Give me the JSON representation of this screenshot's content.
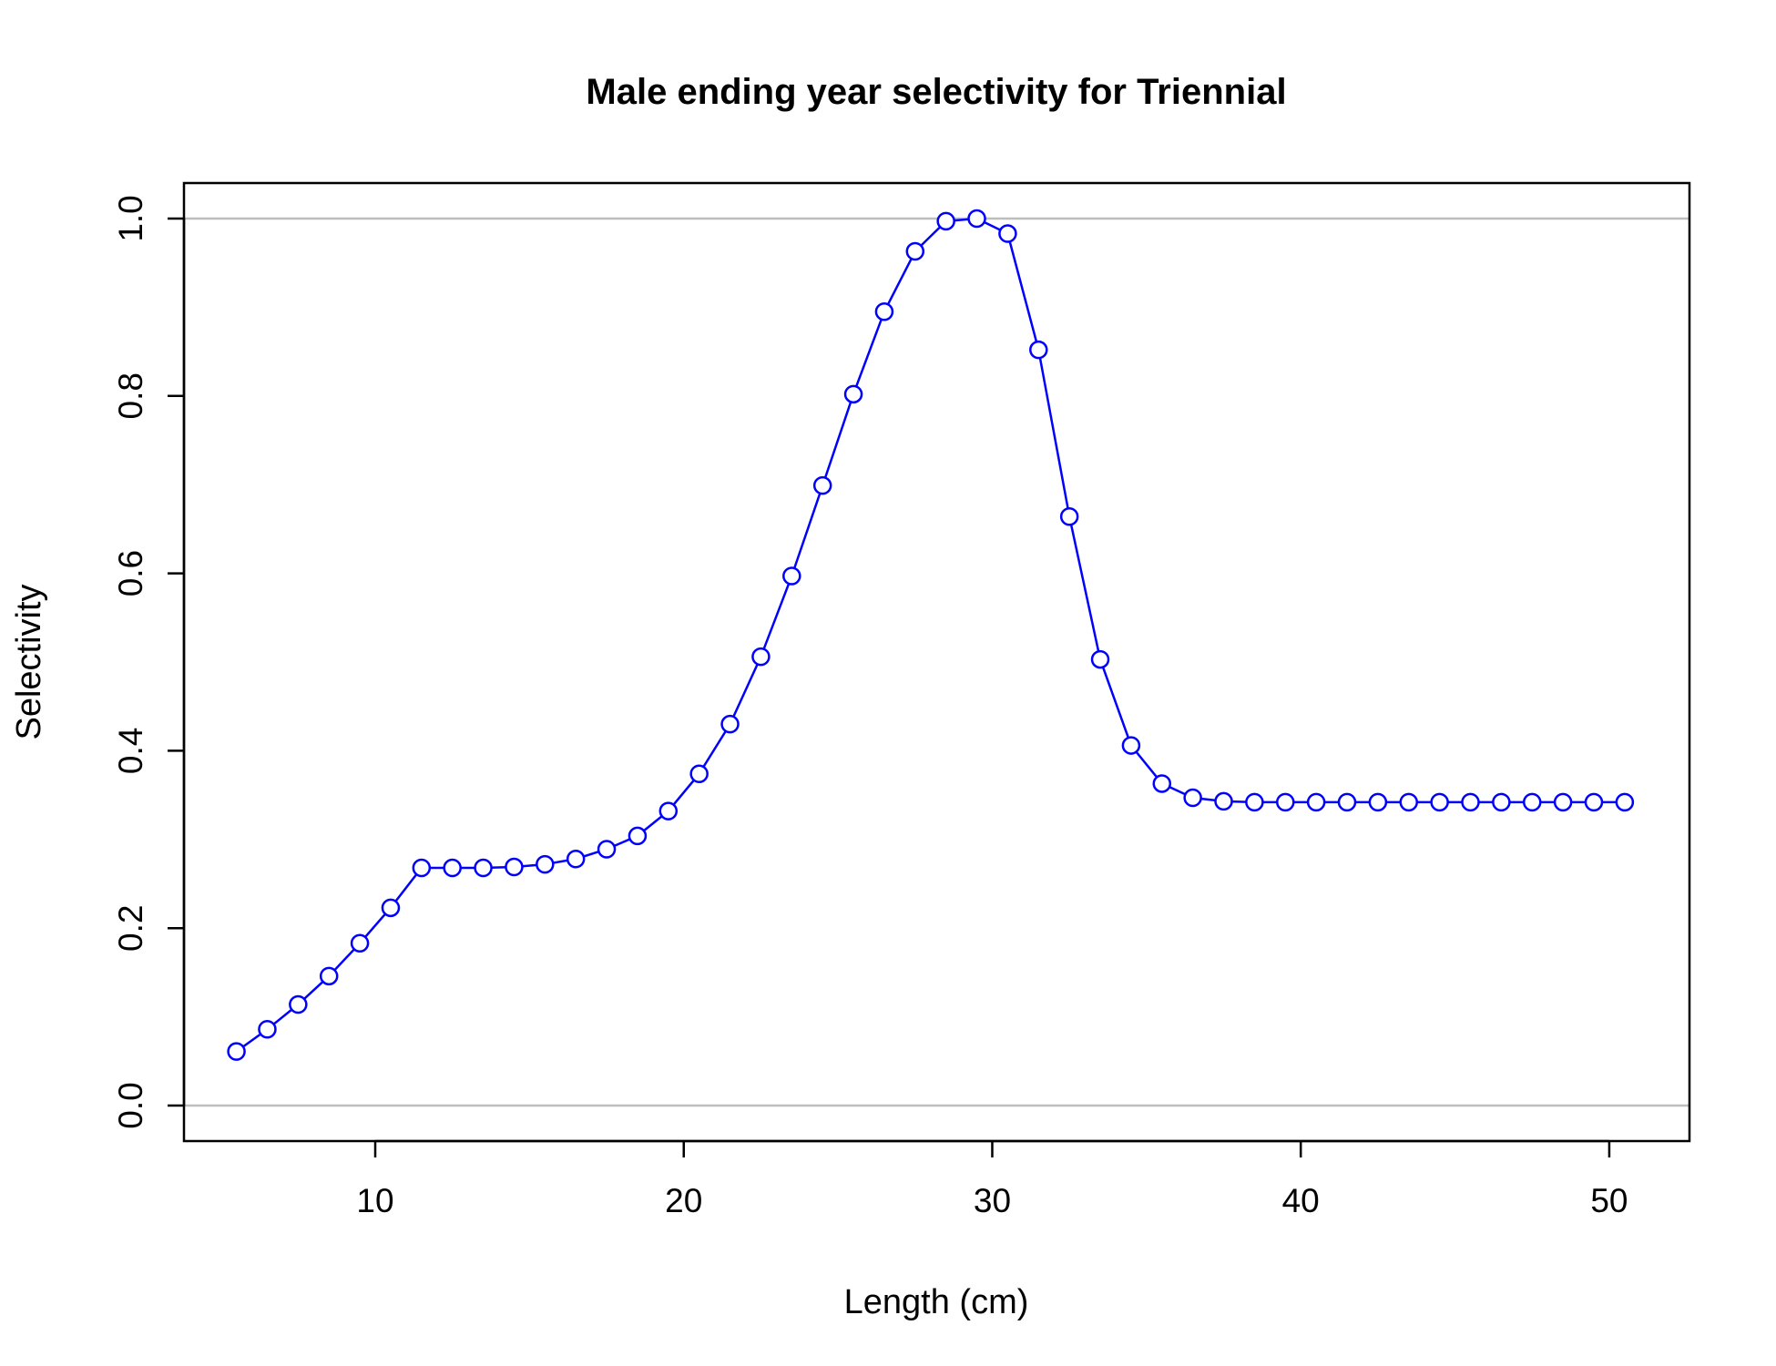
{
  "chart_data": {
    "type": "line",
    "title": "Male ending year selectivity for Triennial",
    "xlabel": "Length (cm)",
    "ylabel": "Selectivity",
    "xlim": [
      3.8,
      52.6
    ],
    "ylim": [
      -0.04,
      1.04
    ],
    "x_ticks": [
      10,
      20,
      30,
      40,
      50
    ],
    "y_ticks": [
      0.0,
      0.2,
      0.4,
      0.6,
      0.8,
      1.0
    ],
    "x_tick_labels": [
      "10",
      "20",
      "30",
      "40",
      "50"
    ],
    "y_tick_labels": [
      "0.0",
      "0.2",
      "0.4",
      "0.6",
      "0.8",
      "1.0"
    ],
    "reference_lines": [
      0,
      1
    ],
    "grid": false,
    "legend": "none",
    "colors": {
      "series": "#0000ff",
      "reference": "#bebebe",
      "frame": "#000000"
    },
    "series": [
      {
        "marker": "open-circle",
        "x": [
          5.5,
          6.5,
          7.5,
          8.5,
          9.5,
          10.5,
          11.5,
          12.5,
          13.5,
          14.5,
          15.5,
          16.5,
          17.5,
          18.5,
          19.5,
          20.5,
          21.5,
          22.5,
          23.5,
          24.5,
          25.5,
          26.5,
          27.5,
          28.5,
          29.5,
          30.5,
          31.5,
          32.5,
          33.5,
          34.5,
          35.5,
          36.5,
          37.5,
          38.5,
          39.5,
          40.5,
          41.5,
          42.5,
          43.5,
          44.5,
          45.5,
          46.5,
          47.5,
          48.5,
          49.5,
          50.5
        ],
        "y": [
          0.061,
          0.086,
          0.114,
          0.146,
          0.183,
          0.223,
          0.268,
          0.268,
          0.268,
          0.269,
          0.272,
          0.278,
          0.289,
          0.304,
          0.332,
          0.374,
          0.43,
          0.506,
          0.597,
          0.699,
          0.802,
          0.895,
          0.963,
          0.997,
          1.0,
          0.983,
          0.852,
          0.664,
          0.503,
          0.406,
          0.363,
          0.347,
          0.343,
          0.342,
          0.342,
          0.342,
          0.342,
          0.342,
          0.342,
          0.342,
          0.342,
          0.342,
          0.342,
          0.342,
          0.342,
          0.342
        ]
      }
    ]
  }
}
